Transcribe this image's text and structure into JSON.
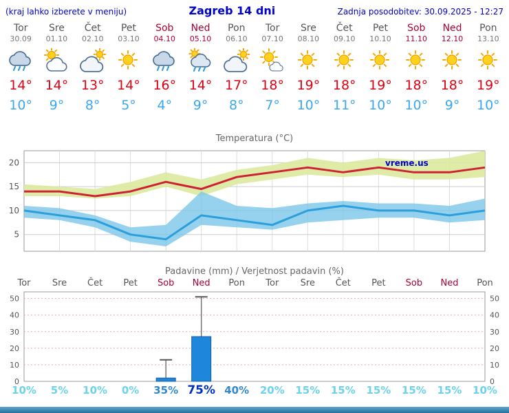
{
  "header": {
    "menu_hint": "(kraj lahko izberete v meniju)",
    "title": "Zagreb 14 dni",
    "last_updated": "Zadnja posodobitev: 30.09.2025 - 12:27"
  },
  "days": [
    {
      "name": "Tor",
      "date": "30.09",
      "weekend": false,
      "icon": "rain",
      "tmax": "14°",
      "tmin": "10°"
    },
    {
      "name": "Sre",
      "date": "01.10",
      "weekend": false,
      "icon": "partly-cloudy",
      "tmax": "14°",
      "tmin": "9°"
    },
    {
      "name": "Čet",
      "date": "02.10",
      "weekend": false,
      "icon": "mostly-cloudy",
      "tmax": "13°",
      "tmin": "8°"
    },
    {
      "name": "Pet",
      "date": "03.10",
      "weekend": false,
      "icon": "sunny",
      "tmax": "14°",
      "tmin": "5°"
    },
    {
      "name": "Sob",
      "date": "04.10",
      "weekend": true,
      "icon": "rain",
      "tmax": "16°",
      "tmin": "4°"
    },
    {
      "name": "Ned",
      "date": "05.10",
      "weekend": true,
      "icon": "rain-showers",
      "tmax": "14°",
      "tmin": "9°"
    },
    {
      "name": "Pon",
      "date": "06.10",
      "weekend": false,
      "icon": "mostly-cloudy",
      "tmax": "17°",
      "tmin": "8°"
    },
    {
      "name": "Tor",
      "date": "07.10",
      "weekend": false,
      "icon": "partly-sunny",
      "tmax": "18°",
      "tmin": "7°"
    },
    {
      "name": "Sre",
      "date": "08.10",
      "weekend": false,
      "icon": "sunny",
      "tmax": "19°",
      "tmin": "10°"
    },
    {
      "name": "Čet",
      "date": "09.10",
      "weekend": false,
      "icon": "sunny",
      "tmax": "18°",
      "tmin": "11°"
    },
    {
      "name": "Pet",
      "date": "10.10",
      "weekend": false,
      "icon": "sunny",
      "tmax": "19°",
      "tmin": "10°"
    },
    {
      "name": "Sob",
      "date": "11.10",
      "weekend": true,
      "icon": "sunny",
      "tmax": "18°",
      "tmin": "10°"
    },
    {
      "name": "Ned",
      "date": "12.10",
      "weekend": true,
      "icon": "sunny",
      "tmax": "18°",
      "tmin": "9°"
    },
    {
      "name": "Pon",
      "date": "13.10",
      "weekend": false,
      "icon": "sunny",
      "tmax": "19°",
      "tmin": "10°"
    }
  ],
  "chart_data": [
    {
      "type": "area",
      "title": "Temperatura (°C)",
      "categories": [
        "Tor",
        "Sre",
        "Čet",
        "Pet",
        "Sob",
        "Ned",
        "Pon",
        "Tor",
        "Sre",
        "Čet",
        "Pet",
        "Sob",
        "Ned",
        "Pon"
      ],
      "series": [
        {
          "name": "max-temp",
          "values": [
            14,
            14,
            13,
            14,
            16,
            14.5,
            17,
            18,
            19,
            18,
            19,
            18,
            18,
            19
          ]
        },
        {
          "name": "max-range-upper",
          "values": [
            15.5,
            15,
            14.5,
            16,
            18,
            16.5,
            18.5,
            19.5,
            21,
            20,
            21,
            20.5,
            21,
            22.5
          ]
        },
        {
          "name": "max-range-lower",
          "values": [
            13,
            13,
            12.5,
            13,
            15,
            13,
            15.5,
            16.5,
            17.5,
            17,
            17.5,
            16.5,
            16.5,
            17
          ]
        },
        {
          "name": "min-temp",
          "values": [
            10,
            9,
            8,
            5,
            4,
            9,
            8,
            7,
            10,
            11,
            10,
            10,
            9,
            10
          ]
        },
        {
          "name": "min-range-upper",
          "values": [
            11,
            10.5,
            9,
            6.5,
            7,
            14,
            11,
            10.5,
            11.5,
            12,
            11.5,
            11.5,
            11,
            12.5
          ]
        },
        {
          "name": "min-range-lower",
          "values": [
            8.5,
            8,
            6.5,
            3.5,
            2.5,
            7,
            6.5,
            6,
            7.5,
            8,
            8.5,
            8.5,
            7.5,
            8
          ]
        }
      ],
      "yticks": [
        5,
        10,
        15,
        20
      ],
      "ylim": [
        1.5,
        22.5
      ],
      "grid": true,
      "watermark": "vreme.us"
    },
    {
      "type": "bar",
      "title": "Padavine (mm) / Verjetnost padavin (%)",
      "categories": [
        "Tor",
        "Sre",
        "Čet",
        "Pet",
        "Sob",
        "Ned",
        "Pon",
        "Tor",
        "Sre",
        "Čet",
        "Pet",
        "Sob",
        "Ned",
        "Pon"
      ],
      "weekend_indices": [
        4,
        5,
        11,
        12
      ],
      "precip_mm": [
        0,
        0,
        0,
        0,
        2,
        27,
        0,
        0,
        0,
        0,
        0,
        0,
        0,
        0
      ],
      "precip_max_mm": [
        0,
        0,
        0,
        0,
        13,
        51,
        0,
        0,
        0,
        0,
        0,
        0,
        0,
        0
      ],
      "probability_pct": [
        10,
        5,
        10,
        0,
        35,
        75,
        40,
        20,
        15,
        15,
        15,
        15,
        15,
        10
      ],
      "probability_labels": [
        "10%",
        "5%",
        "10%",
        "0%",
        "35%",
        "75%",
        "40%",
        "20%",
        "15%",
        "15%",
        "15%",
        "15%",
        "15%",
        "10%"
      ],
      "yticks": [
        0,
        10,
        20,
        30,
        40,
        50
      ],
      "ylim": [
        0,
        54
      ],
      "grid": true
    }
  ],
  "colors": {
    "header_blue": "#0000cc",
    "day": "#555555",
    "date": "#777777",
    "weekend": "#aa0033",
    "tmax": "#dd0011",
    "tmin": "#3aa7f0",
    "title": "#666666",
    "axis": "#999999",
    "tick": "#555555",
    "grid": "#dddddd",
    "grid_precip": "#e8a8a8",
    "band_max": "#dcea9e",
    "line_max": "#cc2233",
    "band_min": "#7cc7e8",
    "line_min": "#2b9fdb",
    "bar": "#1e87dc",
    "bar_border": "#0d5fa8",
    "pct_low": "#6dd3ea",
    "pct_mid": "#2f88cc",
    "pct_high": "#0030c0",
    "watermark": "#0000cc",
    "footer_top": "#5aa7cc",
    "footer_bottom": "#2a6f9e"
  }
}
